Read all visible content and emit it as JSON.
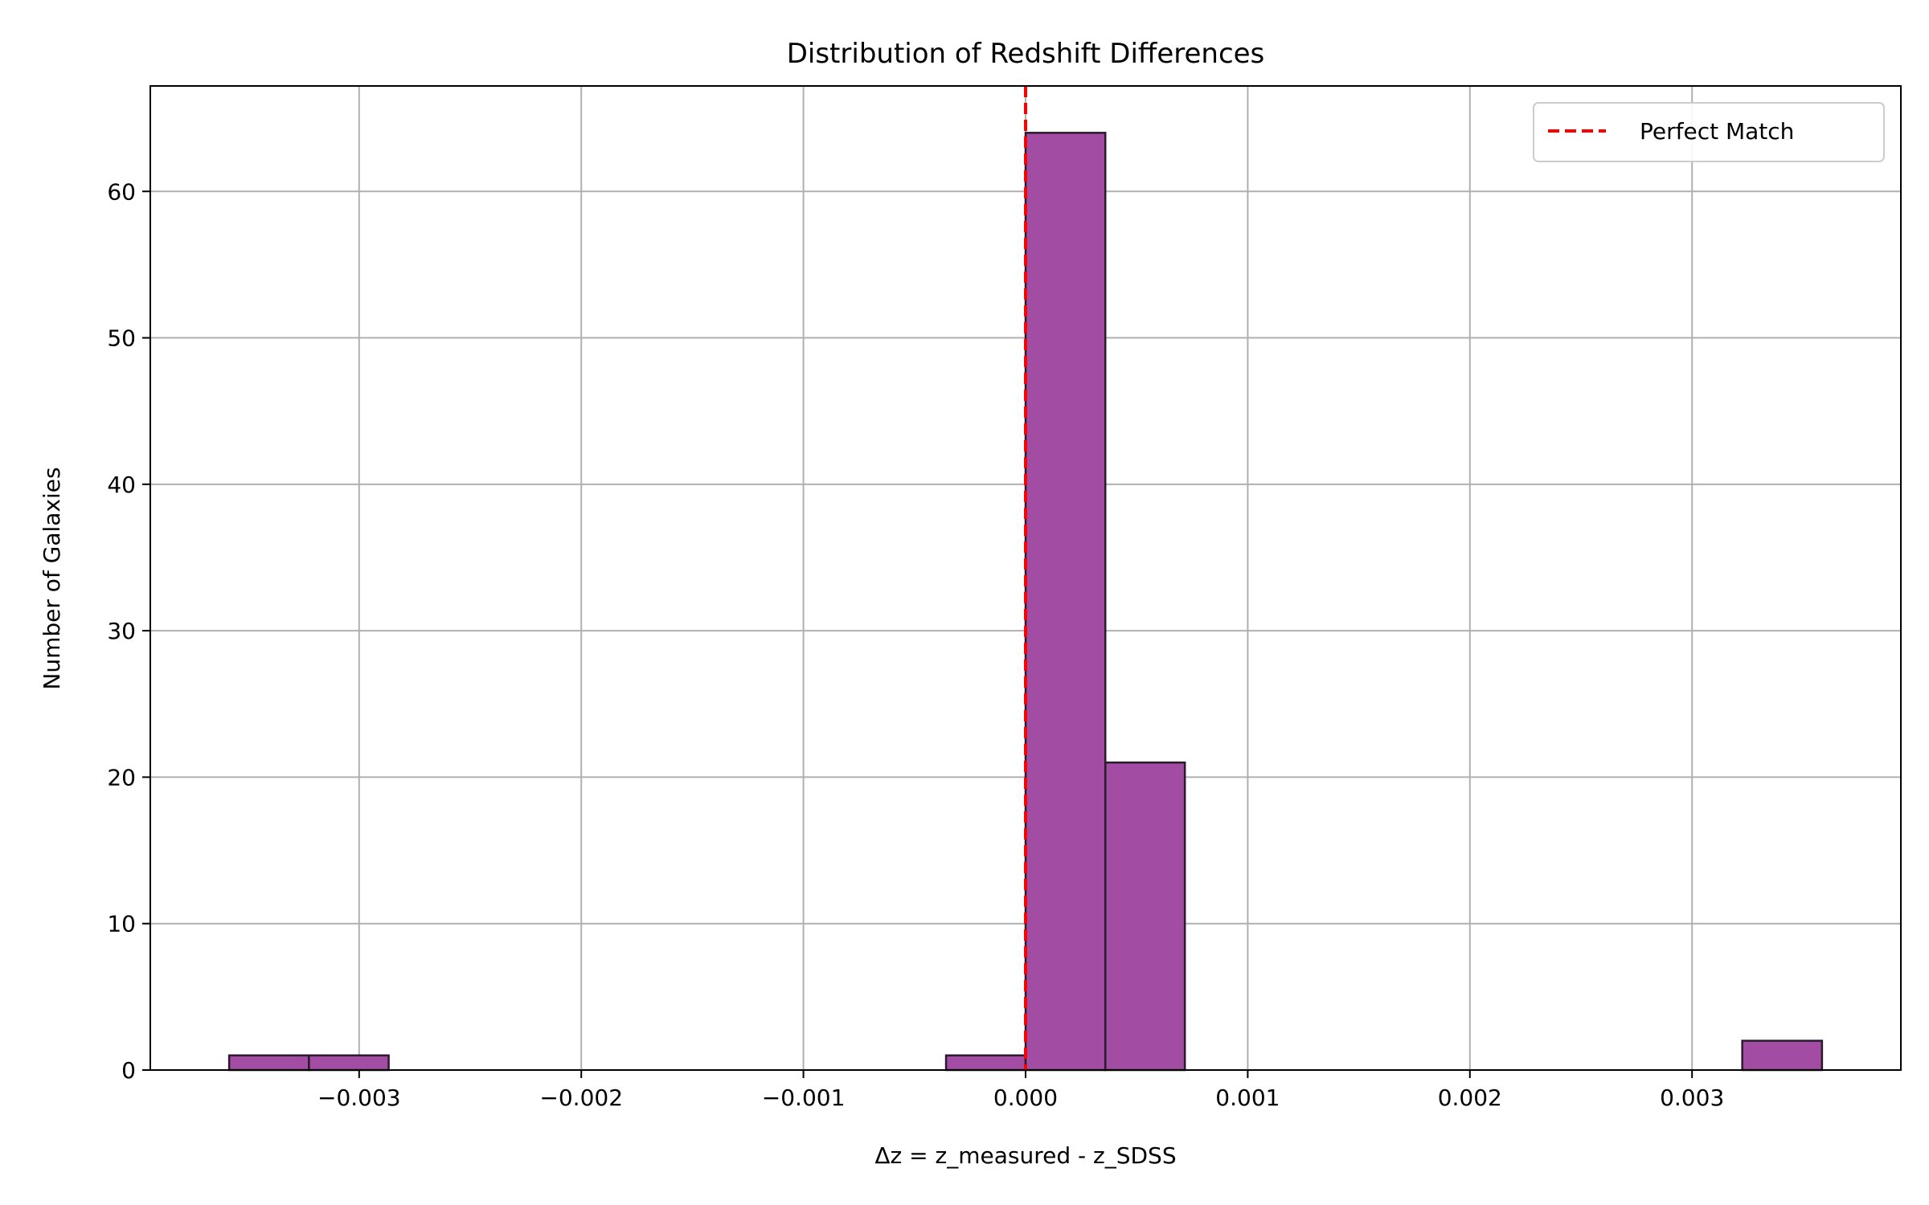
{
  "chart_data": {
    "type": "bar",
    "title": "Distribution of Redshift Differences",
    "xlabel": "Δz = z_measured - z_SDSS",
    "ylabel": "Number of Galaxies",
    "xlim": [
      -0.00394,
      0.00394
    ],
    "ylim": [
      0,
      67.2
    ],
    "x_ticks": [
      {
        "value": -0.003,
        "label": "−0.003"
      },
      {
        "value": -0.002,
        "label": "−0.002"
      },
      {
        "value": -0.001,
        "label": "−0.001"
      },
      {
        "value": 0.0,
        "label": "0.000"
      },
      {
        "value": 0.001,
        "label": "0.001"
      },
      {
        "value": 0.002,
        "label": "0.002"
      },
      {
        "value": 0.003,
        "label": "0.003"
      }
    ],
    "y_ticks": [
      {
        "value": 0,
        "label": "0"
      },
      {
        "value": 10,
        "label": "10"
      },
      {
        "value": 20,
        "label": "20"
      },
      {
        "value": 30,
        "label": "30"
      },
      {
        "value": 40,
        "label": "40"
      },
      {
        "value": 50,
        "label": "50"
      },
      {
        "value": 60,
        "label": "60"
      }
    ],
    "bins": [
      {
        "x0": -0.003585,
        "x1": -0.003226,
        "count": 1
      },
      {
        "x0": -0.003226,
        "x1": -0.002867,
        "count": 1
      },
      {
        "x0": -0.000358,
        "x1": 0.0,
        "count": 1
      },
      {
        "x0": 0.0,
        "x1": 0.000359,
        "count": 64
      },
      {
        "x0": 0.000359,
        "x1": 0.000717,
        "count": 21
      },
      {
        "x0": 0.003226,
        "x1": 0.003585,
        "count": 2
      }
    ],
    "bar_color": "#a24ca3",
    "bar_edge_color": "#2b1a2b",
    "reference_line": {
      "x": 0.0,
      "label": "Perfect Match",
      "color": "#ff0000",
      "style": "dashed"
    },
    "grid": true,
    "legend_position": "top-right"
  }
}
